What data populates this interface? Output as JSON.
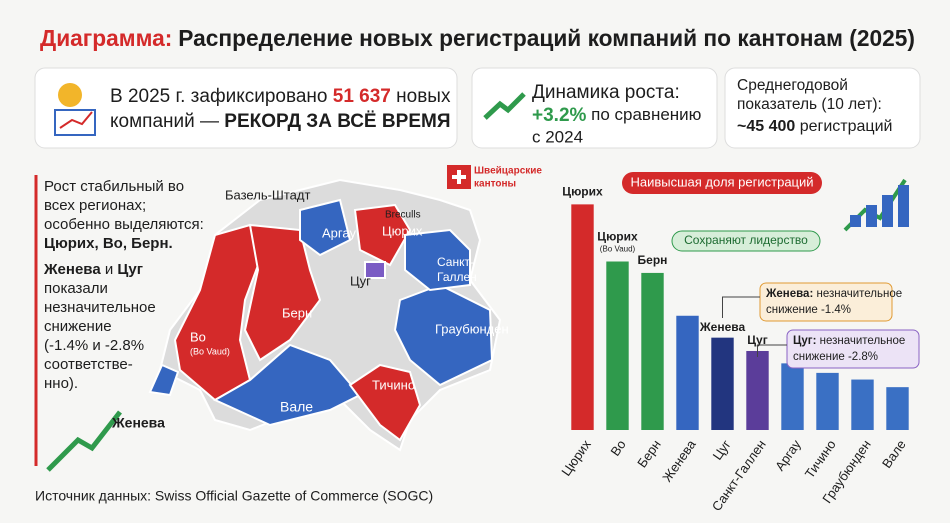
{
  "header": {
    "title_lead": "Диаграмма:",
    "title_rest": "Распределение новых регистраций компаний по кантонам (2025)"
  },
  "cards": [
    {
      "line1_a": "В 2025 г. зафиксировано ",
      "line1_b": "51 637",
      "line1_c": " новых",
      "line2_a": "компаний — ",
      "line2_b": "РЕКОРД ЗА ВСЁ ВРЕМЯ"
    },
    {
      "line1": "Динамика роста:",
      "line2_a": "+3.2%",
      "line2_b": " по сравнению",
      "line3": "с 2024"
    },
    {
      "line1": "Среднегодовой",
      "line2": "показатель (10 лет):",
      "line3_a": "~45 400",
      "line3_b": " регистраций"
    }
  ],
  "side_text": {
    "lines": [
      "Рост стабильный во",
      "всех регионах;",
      "особенно выделяются:"
    ],
    "bold_line": "Цюрих, Во, Берн.",
    "line_b1": "Женева",
    "line_b2": " и ",
    "line_b3": "Цуг",
    "rest": [
      "показали",
      "незначительное",
      "снижение",
      "(-1.4% и -2.8%",
      "соответстве-",
      "нно)."
    ]
  },
  "map": {
    "badge": [
      "Швейцарские",
      "кантоны"
    ],
    "labels": [
      "Базель-Штадт",
      "Breculls",
      "Аргау",
      "Цюрих",
      "Санкт-",
      "Галлен",
      "Цуг",
      "Берн",
      "Во",
      "(Bo Vaud)",
      "Граубюнден",
      "Тичино",
      "Вале",
      "Женева"
    ]
  },
  "source": "Источник данных: Swiss Official Gazette of Commerce (SOGC)",
  "chart_data": {
    "type": "bar",
    "categories": [
      "Цюрих",
      "Во",
      "Берн",
      "Женева",
      "Цуг",
      "Санкт-Галлен",
      "Аргау",
      "Тичино",
      "Граубюнден",
      "Вале"
    ],
    "values": [
      237,
      177,
      165,
      120,
      97,
      83,
      70,
      60,
      53,
      45
    ],
    "colors": [
      "#d42a2a",
      "#2f9a4c",
      "#2f9a4c",
      "#3566c0",
      "#22357f",
      "#5b3d9a",
      "#3a70c4",
      "#3a70c4",
      "#3a70c4",
      "#3a70c4"
    ],
    "ylim": [
      0,
      250
    ],
    "annotations": [
      {
        "head": "Цюрих",
        "note": "Наивысшая доля регистраций"
      },
      {
        "head": "Цюрих",
        "sub": "(Bo Vaud)"
      },
      {
        "head": "Берн",
        "note": "Сохраняют лидерство"
      },
      {
        "head": "Женева",
        "note_b": "Женева:",
        "note_a": " незначительное",
        "note_2": "снижение -1.4%"
      },
      {
        "head": "Цуг",
        "note_b": "Цуг:",
        "note_a": " незначительное",
        "note_2": "снижение -2.8%"
      }
    ]
  }
}
